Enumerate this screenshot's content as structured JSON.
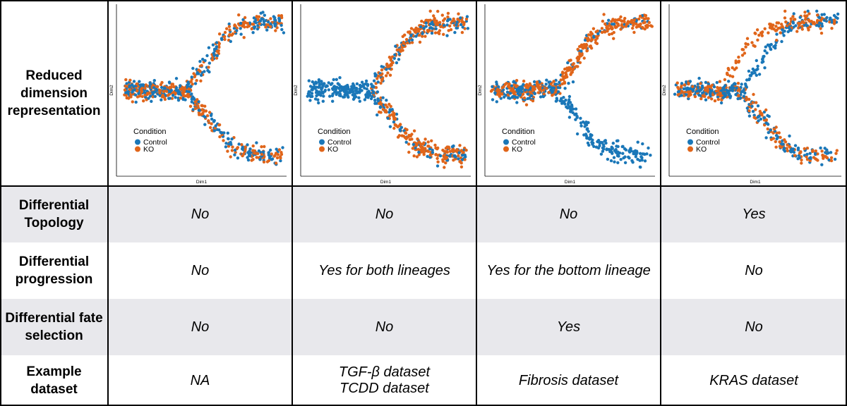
{
  "row_labels": {
    "reduced": "Reduced dimension representation",
    "topology": "Differential Topology",
    "progression": "Differential progression",
    "fate": "Differential fate selection",
    "dataset": "Example dataset"
  },
  "colors": {
    "control": "#1a77b8",
    "ko": "#e0651a",
    "row_shade": "#e8e8ec"
  },
  "panels": [
    {
      "name": "scenario-1",
      "topology": "No",
      "progression": "No",
      "fate": "No",
      "dataset_line1": "NA",
      "dataset_line2": "",
      "chart_data": {
        "type": "scatter",
        "xlabel": "Dim1",
        "ylabel": "Dim2",
        "legend": {
          "title": "Condition",
          "items": [
            "Control",
            "KO"
          ],
          "placement": "bottom-left"
        },
        "pattern": "Both conditions share one trunk that splits into an upper and a lower lineage; Control and KO overlap along both branches",
        "trunk_y": 0.5,
        "series": [
          {
            "name": "Control",
            "top_branch_share": 0.5
          },
          {
            "name": "KO",
            "top_branch_share": 0.5
          }
        ]
      }
    },
    {
      "name": "scenario-2",
      "topology": "No",
      "progression": "Yes for both lineages",
      "fate": "No",
      "dataset_line1": "TGF-β dataset",
      "dataset_line2": "TCDD dataset",
      "chart_data": {
        "type": "scatter",
        "xlabel": "Dim1",
        "ylabel": "Dim2",
        "legend": {
          "title": "Condition",
          "items": [
            "Control",
            "KO"
          ],
          "placement": "bottom-left"
        },
        "pattern": "Control cells dominate the early trunk; KO cells are shifted toward later positions on both lineages",
        "trunk_y": 0.5,
        "series": [
          {
            "name": "Control",
            "top_branch_share": 0.5
          },
          {
            "name": "KO",
            "top_branch_share": 0.5
          }
        ]
      }
    },
    {
      "name": "scenario-3",
      "topology": "No",
      "progression": "Yes for the bottom lineage",
      "fate": "Yes",
      "dataset_line1": "Fibrosis dataset",
      "dataset_line2": "",
      "chart_data": {
        "type": "scatter",
        "xlabel": "Dim1",
        "ylabel": "Dim2",
        "legend": {
          "title": "Condition",
          "items": [
            "Control",
            "KO"
          ],
          "placement": "bottom-left"
        },
        "pattern": "KO cells follow the upper lineage only; the lower lineage is populated almost entirely by Control cells",
        "trunk_y": 0.5,
        "series": [
          {
            "name": "Control",
            "top_branch_share": 0.3
          },
          {
            "name": "KO",
            "top_branch_share": 1.0
          }
        ]
      }
    },
    {
      "name": "scenario-4",
      "topology": "Yes",
      "progression": "No",
      "fate": "No",
      "dataset_line1": "KRAS dataset",
      "dataset_line2": "",
      "chart_data": {
        "type": "scatter",
        "xlabel": "Dim1",
        "ylabel": "Dim2",
        "legend": {
          "title": "Condition",
          "items": [
            "Control",
            "KO"
          ],
          "placement": "bottom-left"
        },
        "pattern": "KO cells branch off earlier than Control cells toward the upper lineage, giving a different trajectory shape",
        "trunk_y": 0.5,
        "series": [
          {
            "name": "Control",
            "top_branch_share": 0.5
          },
          {
            "name": "KO",
            "top_branch_share": 0.5
          }
        ]
      }
    }
  ]
}
